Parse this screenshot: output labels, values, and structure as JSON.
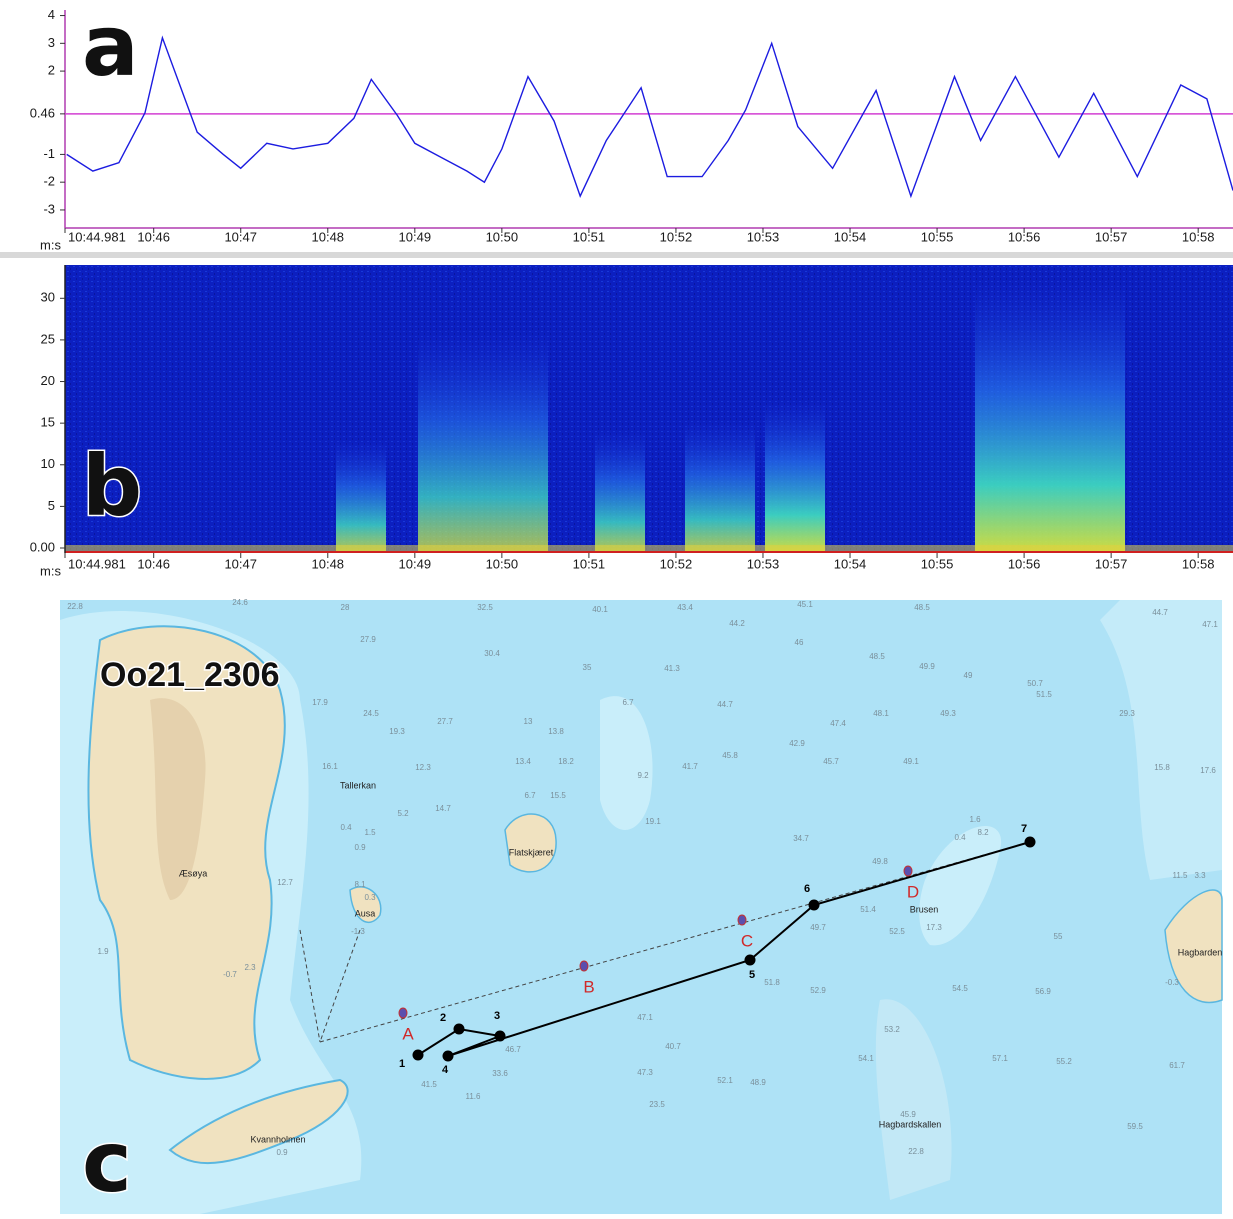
{
  "chart_data": [
    {
      "type": "line",
      "panel_label": "a",
      "x_unit": "m:s",
      "color": "#1c1ce0",
      "reference_line": {
        "value": 0.46,
        "color": "#d23fd2"
      },
      "x": [
        645.0,
        645.3,
        645.6,
        645.9,
        646.1,
        646.3,
        646.5,
        646.8,
        647.0,
        647.3,
        647.6,
        648.0,
        648.3,
        648.5,
        648.8,
        649.0,
        649.3,
        649.6,
        649.8,
        650.0,
        650.3,
        650.6,
        650.9,
        651.2,
        651.6,
        651.9,
        652.3,
        652.6,
        652.8,
        653.1,
        653.4,
        653.8,
        654.3,
        654.7,
        655.2,
        655.5,
        655.9,
        656.4,
        656.8,
        657.3,
        657.8,
        658.1,
        658.4
      ],
      "values": [
        -1.0,
        -1.6,
        -1.3,
        0.5,
        3.2,
        1.5,
        -0.2,
        -1.0,
        -1.5,
        -0.6,
        -0.8,
        -0.6,
        0.3,
        1.7,
        0.4,
        -0.6,
        -1.1,
        -1.6,
        -2.0,
        -0.8,
        1.8,
        0.2,
        -2.5,
        -0.5,
        1.4,
        -1.8,
        -1.8,
        -0.5,
        0.6,
        3.0,
        0.0,
        -1.5,
        1.3,
        -2.5,
        1.8,
        -0.5,
        1.8,
        -1.1,
        1.2,
        -1.8,
        1.5,
        1.0,
        -2.3
      ],
      "xlim": [
        644.981,
        658.4
      ],
      "xticks": [
        {
          "value": 644.981,
          "label": "10:44.981"
        },
        {
          "value": 646,
          "label": "10:46"
        },
        {
          "value": 647,
          "label": "10:47"
        },
        {
          "value": 648,
          "label": "10:48"
        },
        {
          "value": 649,
          "label": "10:49"
        },
        {
          "value": 650,
          "label": "10:50"
        },
        {
          "value": 651,
          "label": "10:51"
        },
        {
          "value": 652,
          "label": "10:52"
        },
        {
          "value": 653,
          "label": "10:53"
        },
        {
          "value": 654,
          "label": "10:54"
        },
        {
          "value": 655,
          "label": "10:55"
        },
        {
          "value": 656,
          "label": "10:56"
        },
        {
          "value": 657,
          "label": "10:57"
        },
        {
          "value": 658,
          "label": "10:58"
        }
      ],
      "ylim": [
        -3.65,
        4.2
      ],
      "yticks": [
        -3,
        -2,
        -1,
        0.46,
        2,
        3,
        4
      ]
    },
    {
      "type": "spectrogram",
      "panel_label": "b",
      "x_unit": "m:s",
      "xlim": [
        644.981,
        658.4
      ],
      "xticks": [
        {
          "value": 644.981,
          "label": "10:44.981"
        },
        {
          "value": 646,
          "label": "10:46"
        },
        {
          "value": 647,
          "label": "10:47"
        },
        {
          "value": 648,
          "label": "10:48"
        },
        {
          "value": 649,
          "label": "10:49"
        },
        {
          "value": 650,
          "label": "10:50"
        },
        {
          "value": 651,
          "label": "10:51"
        },
        {
          "value": 652,
          "label": "10:52"
        },
        {
          "value": 653,
          "label": "10:53"
        },
        {
          "value": 654,
          "label": "10:54"
        },
        {
          "value": 655,
          "label": "10:55"
        },
        {
          "value": 656,
          "label": "10:56"
        },
        {
          "value": 657,
          "label": "10:57"
        },
        {
          "value": 658,
          "label": "10:58"
        }
      ],
      "ylim": [
        -0.6,
        34
      ],
      "yticks": [
        {
          "value": 0,
          "label": "0.00"
        },
        5,
        10,
        15,
        20,
        25,
        30
      ]
    }
  ],
  "map": {
    "panel_label": "c",
    "title": "Oo21_2306",
    "track_points": [
      "1",
      "2",
      "3",
      "4",
      "5",
      "6",
      "7"
    ],
    "stations": [
      "A",
      "B",
      "C",
      "D"
    ],
    "place_names": [
      "Æsøya",
      "Tallerkan",
      "Ausa",
      "Flatskjæret",
      "Brusen",
      "Kvannholmen",
      "Hagbardskallen",
      "Hagbarden"
    ],
    "soundings": [
      "22.8",
      "24.6",
      "28",
      "32.5",
      "40.1",
      "43.4",
      "45.1",
      "48.5",
      "47.1",
      "44.7",
      "27.9",
      "30.4",
      "35",
      "41.3",
      "44.2",
      "46",
      "48.5",
      "49.9",
      "49",
      "50.7",
      "17.9",
      "24.5",
      "19.3",
      "27.7",
      "13",
      "13.8",
      "6.7",
      "44.7",
      "47.4",
      "48.1",
      "49.3",
      "51.5",
      "29.3",
      "15.8",
      "17.6",
      "12.3",
      "13.4",
      "18.2",
      "9.2",
      "19.1",
      "41.7",
      "45.8",
      "42.9",
      "45.7",
      "49.1",
      "5.2",
      "14.7",
      "6.7",
      "15.5",
      "34.7",
      "49.8",
      "51.4",
      "52.5",
      "55",
      "56.9",
      "54.5",
      "53.2",
      "52.9",
      "54.1",
      "57.1",
      "59.5",
      "55.2",
      "61.7",
      "49.7",
      "51.8",
      "46.7",
      "33.6",
      "11.6",
      "41.5",
      "47.1",
      "47.3",
      "40.7",
      "52.1",
      "48.9",
      "23.5",
      "16.1",
      "0.4",
      "1.5",
      "0.9",
      "8.1",
      "0.3",
      "-1.3",
      "12.7",
      "2.3",
      "-0.7",
      "1.9",
      "0.9",
      "-0.3",
      "17.3",
      "1.6",
      "0.4",
      "8.2",
      "22.8",
      "45.9",
      "11.5",
      "3.3"
    ]
  }
}
